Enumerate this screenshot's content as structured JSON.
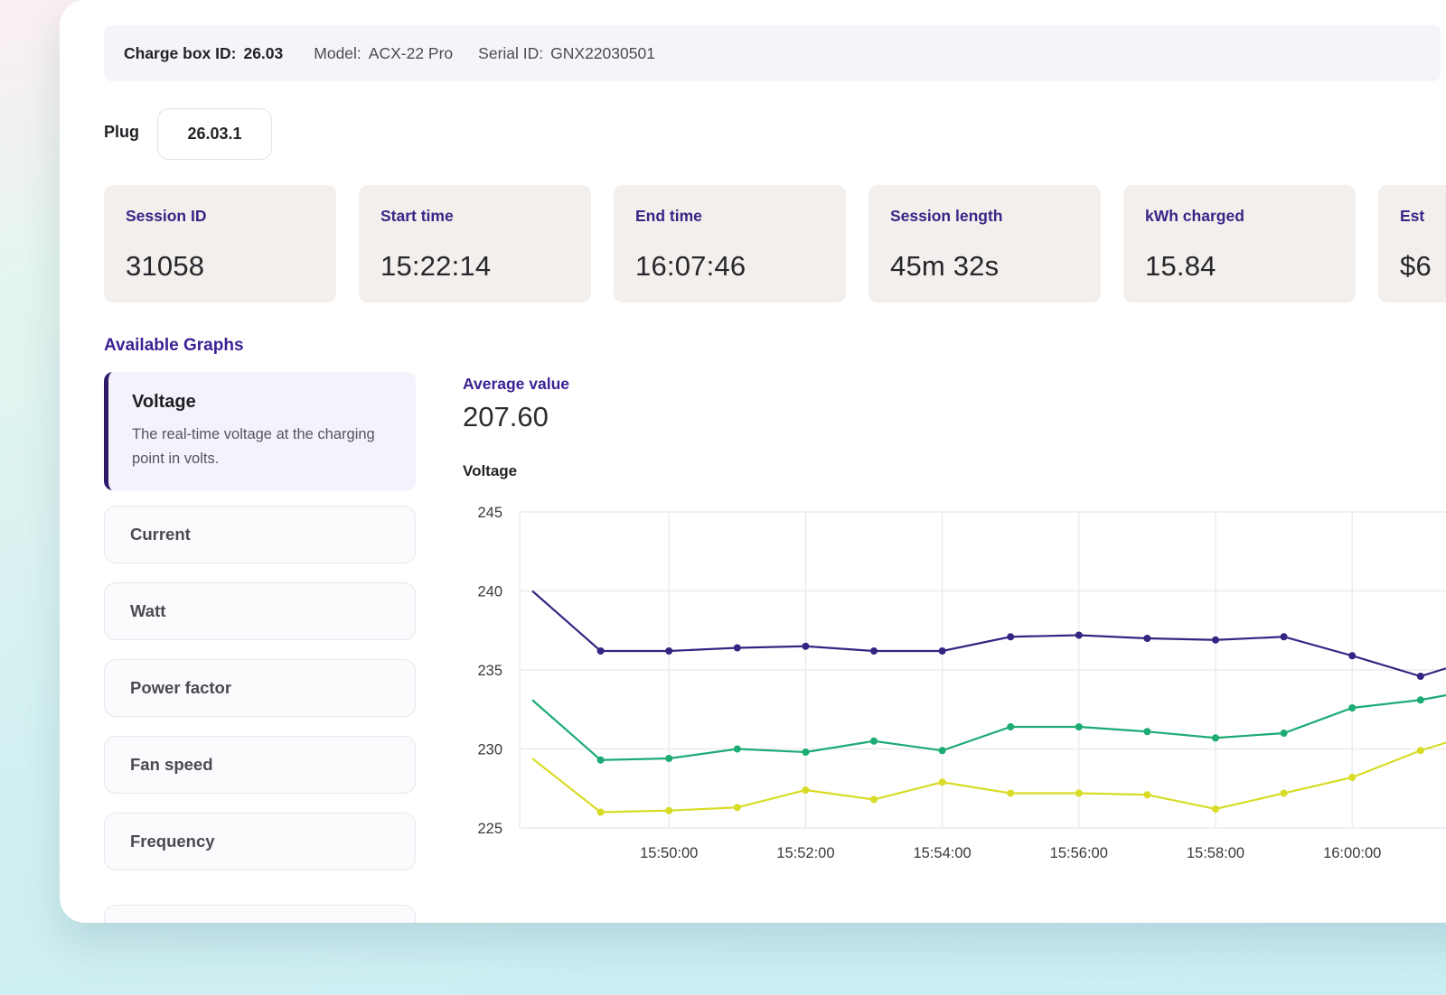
{
  "header": {
    "chargebox_label": "Charge box ID:",
    "chargebox_value": "26.03",
    "model_label": "Model:",
    "model_value": "ACX-22 Pro",
    "serial_label": "Serial ID:",
    "serial_value": "GNX22030501"
  },
  "plug": {
    "label": "Plug",
    "value": "26.03.1"
  },
  "stats": [
    {
      "label": "Session ID",
      "value": "31058"
    },
    {
      "label": "Start time",
      "value": "15:22:14"
    },
    {
      "label": "End time",
      "value": "16:07:46"
    },
    {
      "label": "Session length",
      "value": "45m 32s"
    },
    {
      "label": "kWh charged",
      "value": "15.84"
    },
    {
      "label": "Est",
      "value": "$6"
    }
  ],
  "graphs": {
    "heading": "Available Graphs",
    "selected": {
      "title": "Voltage",
      "description": "The real-time voltage at the charging point in volts."
    },
    "items": [
      "Current",
      "Watt",
      "Power factor",
      "Fan speed",
      "Frequency"
    ]
  },
  "average": {
    "label": "Average value",
    "value": "207.60"
  },
  "chart_data": {
    "type": "line",
    "title": "Voltage",
    "ylim": [
      225,
      245
    ],
    "yticks": [
      245,
      240,
      235,
      230,
      225
    ],
    "xticks": [
      "15:50:00",
      "15:52:00",
      "15:54:00",
      "15:56:00",
      "15:58:00",
      "16:00:00"
    ],
    "x": [
      "15:48",
      "15:49",
      "15:50",
      "15:51",
      "15:52",
      "15:53",
      "15:54",
      "15:55",
      "15:56",
      "15:57",
      "15:58",
      "15:59",
      "16:00",
      "16:01"
    ],
    "series": [
      {
        "name": "line-1",
        "color": "#332582",
        "values": [
          240.0,
          236.2,
          236.2,
          236.4,
          236.5,
          236.2,
          236.2,
          237.1,
          237.2,
          237.0,
          236.9,
          237.1,
          235.9,
          234.6
        ],
        "edge_value": 235.1
      },
      {
        "name": "line-2",
        "color": "#1cab73",
        "values": [
          233.1,
          229.3,
          229.4,
          230.0,
          229.8,
          230.5,
          229.9,
          231.4,
          231.4,
          231.1,
          230.7,
          231.0,
          232.6,
          233.1
        ],
        "edge_value": 233.4
      },
      {
        "name": "line-3",
        "color": "#d8dc26",
        "values": [
          229.4,
          226.0,
          226.1,
          226.3,
          227.4,
          226.8,
          227.9,
          227.2,
          227.2,
          227.1,
          226.2,
          227.2,
          228.2,
          229.9
        ],
        "edge_value": 230.4
      }
    ],
    "grid": true,
    "legend": false,
    "clipped_right": true,
    "grid_color": "#ebebee",
    "tick_color": "#38383e"
  }
}
